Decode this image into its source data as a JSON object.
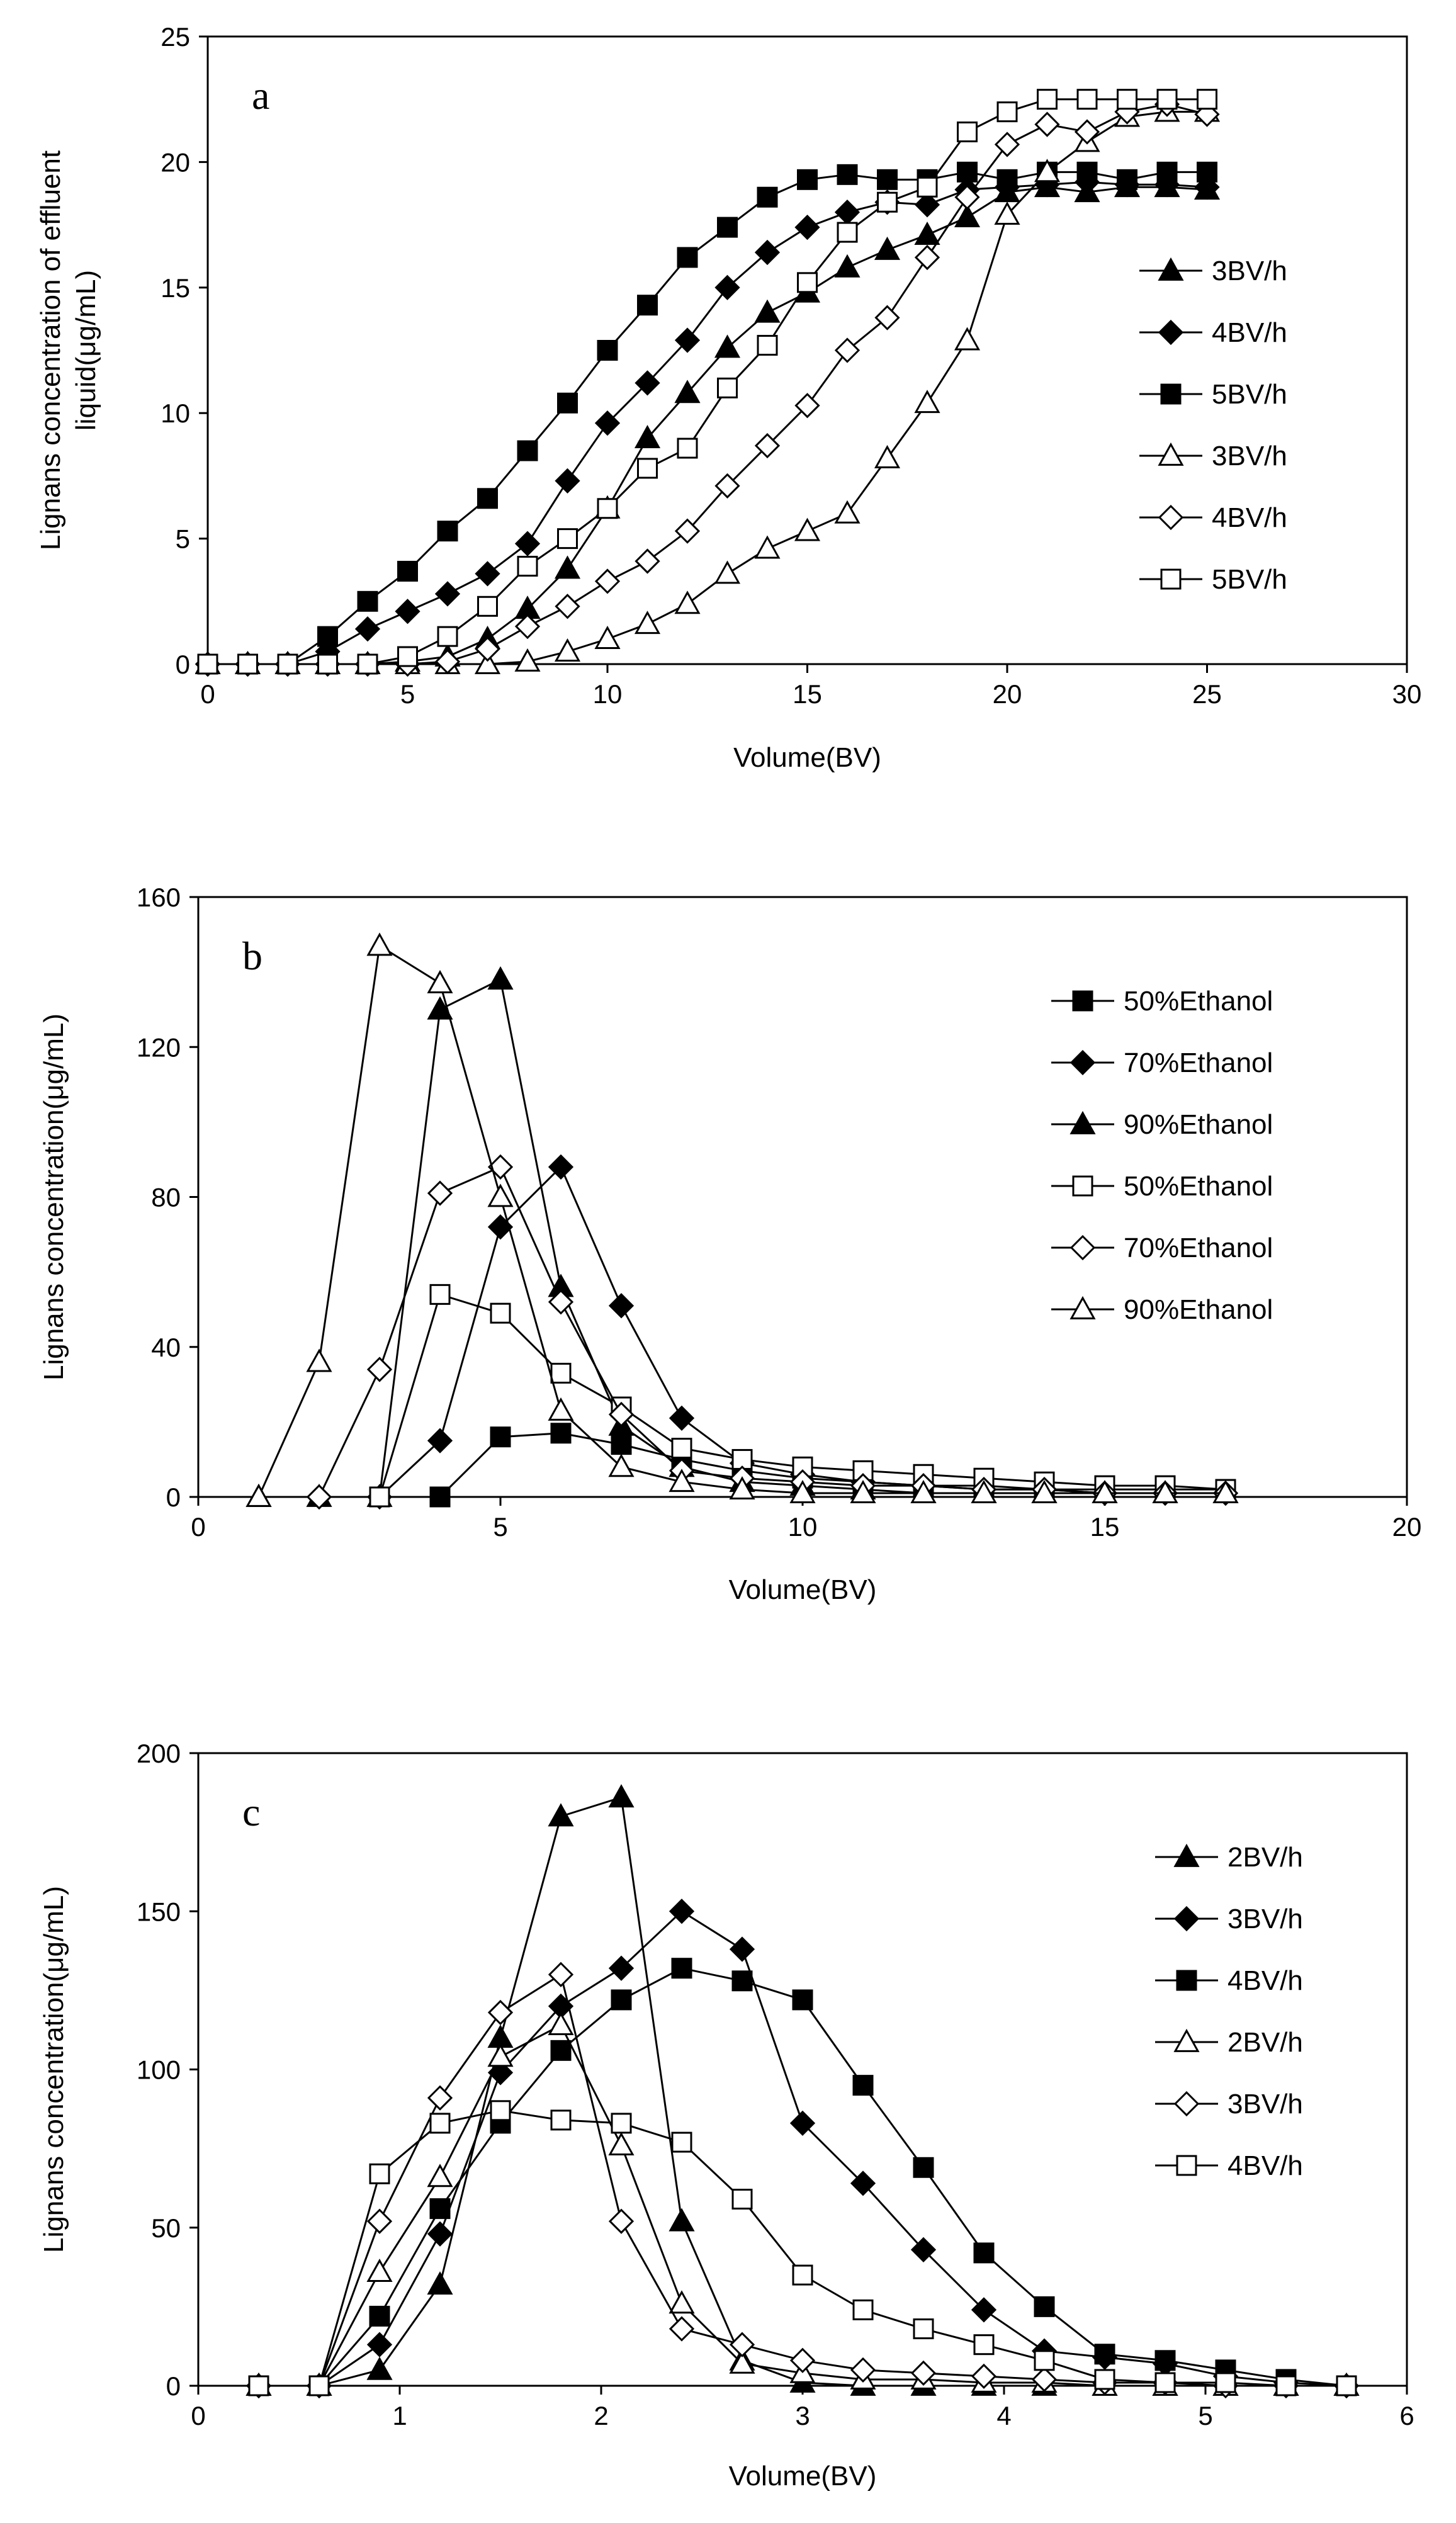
{
  "chart_data": [
    {
      "panel": "a",
      "type": "line",
      "title": "",
      "panel_label": "a",
      "xlabel": "Volume(BV)",
      "ylabel_lines": [
        "Lignans concentration of effluent",
        "liquid(μg/mL)"
      ],
      "xlim": [
        0,
        30
      ],
      "ylim": [
        0,
        25
      ],
      "xticks": [
        0,
        5,
        10,
        15,
        20,
        25,
        30
      ],
      "yticks": [
        0,
        5,
        10,
        15,
        20,
        25
      ],
      "legend_position": "right-middle",
      "series": [
        {
          "name": "3BV/h",
          "marker": "triangle",
          "filled": true,
          "x": [
            0,
            1,
            2,
            3,
            4,
            5,
            6,
            7,
            8,
            9,
            10,
            11,
            12,
            13,
            14,
            15,
            16,
            17,
            18,
            19,
            20,
            21,
            22,
            23,
            24,
            25
          ],
          "y": [
            0,
            0,
            0,
            0,
            0,
            0.1,
            0.3,
            1.0,
            2.2,
            3.8,
            6.2,
            9.0,
            10.8,
            12.6,
            14.0,
            14.8,
            15.8,
            16.5,
            17.1,
            17.8,
            18.8,
            19.0,
            18.8,
            19.0,
            19.0,
            18.9
          ]
        },
        {
          "name": "4BV/h",
          "marker": "diamond",
          "filled": true,
          "x": [
            0,
            1,
            2,
            3,
            4,
            5,
            6,
            7,
            8,
            9,
            10,
            11,
            12,
            13,
            14,
            15,
            16,
            17,
            18,
            19,
            20,
            21,
            22,
            23,
            24,
            25
          ],
          "y": [
            0,
            0,
            0,
            0.5,
            1.4,
            2.1,
            2.8,
            3.6,
            4.8,
            7.3,
            9.6,
            11.2,
            12.9,
            15.0,
            16.4,
            17.4,
            18.0,
            18.4,
            18.3,
            18.9,
            19.0,
            19.1,
            19.2,
            19.1,
            19.1,
            19.0
          ]
        },
        {
          "name": "5BV/h",
          "marker": "square",
          "filled": true,
          "x": [
            0,
            1,
            2,
            3,
            4,
            5,
            6,
            7,
            8,
            9,
            10,
            11,
            12,
            13,
            14,
            15,
            16,
            17,
            18,
            19,
            20,
            21,
            22,
            23,
            24,
            25
          ],
          "y": [
            0,
            0,
            0,
            1.1,
            2.5,
            3.7,
            5.3,
            6.6,
            8.5,
            10.4,
            12.5,
            14.3,
            16.2,
            17.4,
            18.6,
            19.3,
            19.5,
            19.3,
            19.3,
            19.6,
            19.3,
            19.6,
            19.6,
            19.3,
            19.6,
            19.6
          ]
        },
        {
          "name": "3BV/h",
          "marker": "triangle",
          "filled": false,
          "x": [
            0,
            1,
            2,
            3,
            4,
            5,
            6,
            7,
            8,
            9,
            10,
            11,
            12,
            13,
            14,
            15,
            16,
            17,
            18,
            19,
            20,
            21,
            22,
            23,
            24,
            25
          ],
          "y": [
            0,
            0,
            0,
            0,
            0,
            0,
            0,
            0,
            0.1,
            0.5,
            1.0,
            1.6,
            2.4,
            3.6,
            4.6,
            5.3,
            6.0,
            8.2,
            10.4,
            12.9,
            17.9,
            19.6,
            20.8,
            21.8,
            22.0,
            22.0
          ]
        },
        {
          "name": "4BV/h",
          "marker": "diamond",
          "filled": false,
          "x": [
            0,
            1,
            2,
            3,
            4,
            5,
            6,
            7,
            8,
            9,
            10,
            11,
            12,
            13,
            14,
            15,
            16,
            17,
            18,
            19,
            20,
            21,
            22,
            23,
            24,
            25
          ],
          "y": [
            0,
            0,
            0,
            0,
            0,
            0,
            0.1,
            0.6,
            1.5,
            2.3,
            3.3,
            4.1,
            5.3,
            7.1,
            8.7,
            10.3,
            12.5,
            13.8,
            16.2,
            18.6,
            20.7,
            21.5,
            21.2,
            22.0,
            22.3,
            21.9
          ]
        },
        {
          "name": "5BV/h",
          "marker": "square",
          "filled": false,
          "x": [
            0,
            1,
            2,
            3,
            4,
            5,
            6,
            7,
            8,
            9,
            10,
            11,
            12,
            13,
            14,
            15,
            16,
            17,
            18,
            19,
            20,
            21,
            22,
            23,
            24,
            25
          ],
          "y": [
            0,
            0,
            0,
            0,
            0,
            0.3,
            1.1,
            2.3,
            3.9,
            5.0,
            6.2,
            7.8,
            8.6,
            11.0,
            12.7,
            15.2,
            17.2,
            18.4,
            19.0,
            21.2,
            22.0,
            22.5,
            22.5,
            22.5,
            22.5,
            22.5
          ]
        }
      ]
    },
    {
      "panel": "b",
      "type": "line",
      "title": "",
      "panel_label": "b",
      "xlabel": "Volume(BV)",
      "ylabel_lines": [
        "Lignans concentration(μg/mL)"
      ],
      "xlim": [
        0,
        20
      ],
      "ylim": [
        0,
        160
      ],
      "xticks": [
        0,
        5,
        10,
        15,
        20
      ],
      "yticks": [
        0,
        40,
        80,
        120,
        160
      ],
      "legend_position": "right-top",
      "series": [
        {
          "name": "50%Ethanol",
          "marker": "square",
          "filled": true,
          "x": [
            3,
            4,
            5,
            6,
            7,
            8,
            9,
            10,
            11,
            12,
            13,
            14,
            15,
            16,
            17
          ],
          "y": [
            0,
            0,
            16,
            17,
            14,
            10,
            7,
            5,
            4,
            3,
            3,
            2,
            2,
            2,
            2
          ]
        },
        {
          "name": "70%Ethanol",
          "marker": "diamond",
          "filled": true,
          "x": [
            2,
            3,
            4,
            5,
            6,
            7,
            8,
            9,
            10,
            11,
            12,
            13,
            14,
            15,
            16,
            17
          ],
          "y": [
            0,
            0,
            15,
            72,
            88,
            51,
            21,
            9,
            6,
            4,
            3,
            2,
            2,
            1,
            1,
            1
          ]
        },
        {
          "name": "90%Ethanol",
          "marker": "triangle",
          "filled": true,
          "x": [
            1,
            2,
            3,
            4,
            5,
            6,
            7,
            8,
            9,
            10,
            11,
            12,
            13,
            14,
            15,
            16,
            17
          ],
          "y": [
            0,
            0,
            0,
            130,
            138,
            56,
            19,
            8,
            4,
            3,
            2,
            1,
            1,
            1,
            1,
            1,
            1
          ]
        },
        {
          "name": "50%Ethanol",
          "marker": "square",
          "filled": false,
          "x": [
            3,
            4,
            5,
            6,
            7,
            8,
            9,
            10,
            11,
            12,
            13,
            14,
            15,
            16,
            17
          ],
          "y": [
            0,
            54,
            49,
            33,
            24,
            13,
            10,
            8,
            7,
            6,
            5,
            4,
            3,
            3,
            2
          ]
        },
        {
          "name": "70%Ethanol",
          "marker": "diamond",
          "filled": false,
          "x": [
            2,
            3,
            4,
            5,
            6,
            7,
            8,
            9,
            10,
            11,
            12,
            13,
            14,
            15,
            16,
            17
          ],
          "y": [
            0,
            34,
            81,
            88,
            52,
            22,
            7,
            5,
            4,
            3,
            3,
            2,
            2,
            1,
            1,
            1
          ]
        },
        {
          "name": "90%Ethanol",
          "marker": "triangle",
          "filled": false,
          "x": [
            1,
            2,
            3,
            4,
            5,
            6,
            7,
            8,
            9,
            10,
            11,
            12,
            13,
            14,
            15,
            16,
            17
          ],
          "y": [
            0,
            36,
            147,
            137,
            80,
            23,
            8,
            4,
            2,
            1,
            1,
            1,
            1,
            1,
            1,
            1,
            1
          ]
        }
      ]
    },
    {
      "panel": "c",
      "type": "line",
      "title": "",
      "panel_label": "c",
      "xlabel": "Volume(BV)",
      "ylabel_lines": [
        "Lignans concentration(μg/mL)"
      ],
      "xlim": [
        0,
        6
      ],
      "ylim": [
        0,
        200
      ],
      "xticks": [
        0,
        1,
        2,
        3,
        4,
        5,
        6
      ],
      "yticks": [
        0,
        50,
        100,
        150,
        200
      ],
      "legend_position": "right-top",
      "series": [
        {
          "name": "2BV/h",
          "marker": "triangle",
          "filled": true,
          "x": [
            0.3,
            0.6,
            0.9,
            1.2,
            1.5,
            1.8,
            2.1,
            2.4,
            2.7,
            3.0,
            3.3,
            3.6,
            3.9,
            4.2,
            4.5,
            4.8,
            5.1,
            5.4,
            5.7
          ],
          "y": [
            0,
            0,
            5,
            32,
            110,
            180,
            186,
            52,
            8,
            1,
            0,
            0,
            0,
            0,
            0,
            0,
            0,
            0,
            0
          ]
        },
        {
          "name": "3BV/h",
          "marker": "diamond",
          "filled": true,
          "x": [
            0.3,
            0.6,
            0.9,
            1.2,
            1.5,
            1.8,
            2.1,
            2.4,
            2.7,
            3.0,
            3.3,
            3.6,
            3.9,
            4.2,
            4.5,
            4.8,
            5.1,
            5.4,
            5.7
          ],
          "y": [
            0,
            0,
            13,
            48,
            99,
            120,
            132,
            150,
            138,
            83,
            64,
            43,
            24,
            11,
            9,
            7,
            3,
            1,
            0
          ]
        },
        {
          "name": "4BV/h",
          "marker": "square",
          "filled": true,
          "x": [
            0.3,
            0.6,
            0.9,
            1.2,
            1.5,
            1.8,
            2.1,
            2.4,
            2.7,
            3.0,
            3.3,
            3.6,
            3.9,
            4.2,
            4.5,
            4.8,
            5.1,
            5.4,
            5.7
          ],
          "y": [
            0,
            0,
            22,
            56,
            83,
            106,
            122,
            132,
            128,
            122,
            95,
            69,
            42,
            25,
            10,
            8,
            5,
            2,
            0
          ]
        },
        {
          "name": "2BV/h",
          "marker": "triangle",
          "filled": false,
          "x": [
            0.3,
            0.6,
            0.9,
            1.2,
            1.5,
            1.8,
            2.1,
            2.4,
            2.7,
            3.0,
            3.3,
            3.6,
            3.9,
            4.2,
            4.5,
            4.8,
            5.1,
            5.4,
            5.7
          ],
          "y": [
            0,
            0,
            36,
            66,
            104,
            114,
            76,
            26,
            7,
            4,
            2,
            2,
            1,
            1,
            0,
            0,
            0,
            0,
            0
          ]
        },
        {
          "name": "3BV/h",
          "marker": "diamond",
          "filled": false,
          "x": [
            0.3,
            0.6,
            0.9,
            1.2,
            1.5,
            1.8,
            2.1,
            2.4,
            2.7,
            3.0,
            3.3,
            3.6,
            3.9,
            4.2,
            4.5,
            4.8,
            5.1,
            5.4,
            5.7
          ],
          "y": [
            0,
            0,
            52,
            91,
            118,
            130,
            52,
            18,
            13,
            8,
            5,
            4,
            3,
            2,
            1,
            1,
            0,
            0,
            0
          ]
        },
        {
          "name": "4BV/h",
          "marker": "square",
          "filled": false,
          "x": [
            0.3,
            0.6,
            0.9,
            1.2,
            1.5,
            1.8,
            2.1,
            2.4,
            2.7,
            3.0,
            3.3,
            3.6,
            3.9,
            4.2,
            4.5,
            4.8,
            5.1,
            5.4,
            5.7
          ],
          "y": [
            0,
            0,
            67,
            83,
            87,
            84,
            83,
            77,
            59,
            35,
            24,
            18,
            13,
            8,
            2,
            1,
            1,
            0,
            0
          ]
        }
      ]
    }
  ]
}
